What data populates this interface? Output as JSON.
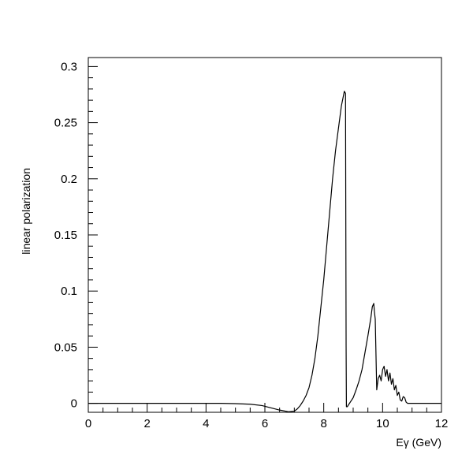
{
  "chart_data": {
    "type": "line",
    "xlabel": "Eγ (GeV)",
    "ylabel": "linear polarization",
    "xlim": [
      0,
      12
    ],
    "ylim": [
      -0.008,
      0.308
    ],
    "grid": false,
    "xticks": [
      {
        "value": 0,
        "label": "0"
      },
      {
        "value": 2,
        "label": "2"
      },
      {
        "value": 4,
        "label": "4"
      },
      {
        "value": 6,
        "label": "6"
      },
      {
        "value": 8,
        "label": "8"
      },
      {
        "value": 10,
        "label": "10"
      },
      {
        "value": 12,
        "label": "12"
      }
    ],
    "yticks": [
      {
        "value": 0,
        "label": "0"
      },
      {
        "value": 0.05,
        "label": "0.05"
      },
      {
        "value": 0.1,
        "label": "0.1"
      },
      {
        "value": 0.15,
        "label": "0.15"
      },
      {
        "value": 0.2,
        "label": "0.2"
      },
      {
        "value": 0.25,
        "label": "0.25"
      },
      {
        "value": 0.3,
        "label": "0.3"
      }
    ],
    "series": [
      {
        "x": [
          0,
          4.5,
          5.0,
          5.5,
          5.9,
          6.2,
          6.5,
          6.8,
          7.0,
          7.1,
          7.2,
          7.3,
          7.4,
          7.5,
          7.6,
          7.7,
          7.8,
          7.9,
          8.0,
          8.1,
          8.2,
          8.3,
          8.4,
          8.5,
          8.6,
          8.7,
          8.74,
          8.76,
          8.77,
          8.8,
          8.9,
          9.0,
          9.1,
          9.2,
          9.3,
          9.4,
          9.5,
          9.6,
          9.65,
          9.7,
          9.72,
          9.75,
          9.8,
          9.85,
          9.9,
          9.95,
          10.0,
          10.05,
          10.1,
          10.15,
          10.2,
          10.25,
          10.3,
          10.35,
          10.4,
          10.45,
          10.5,
          10.55,
          10.6,
          10.65,
          10.7,
          10.75,
          10.8,
          10.85,
          11.0,
          12.0
        ],
        "y": [
          0,
          0,
          -0.0003,
          -0.0008,
          -0.002,
          -0.004,
          -0.006,
          -0.0075,
          -0.007,
          -0.005,
          -0.002,
          0.002,
          0.007,
          0.014,
          0.025,
          0.04,
          0.06,
          0.085,
          0.11,
          0.14,
          0.17,
          0.2,
          0.225,
          0.245,
          0.265,
          0.278,
          0.276,
          0.05,
          -0.003,
          -0.003,
          0.001,
          0.005,
          0.012,
          0.02,
          0.03,
          0.045,
          0.06,
          0.076,
          0.086,
          0.089,
          0.082,
          0.075,
          0.012,
          0.022,
          0.025,
          0.02,
          0.03,
          0.033,
          0.024,
          0.03,
          0.02,
          0.027,
          0.017,
          0.022,
          0.012,
          0.016,
          0.007,
          0.01,
          0.003,
          0.002,
          0.006,
          0.005,
          0.001,
          0,
          0,
          0
        ]
      }
    ]
  }
}
